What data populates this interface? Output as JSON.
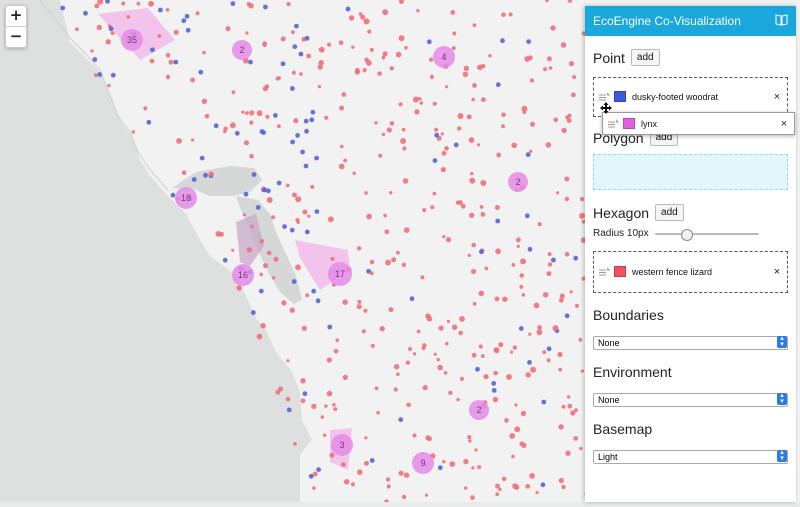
{
  "map": {
    "zoom_in": "+",
    "zoom_out": "−",
    "cluster_counts": [
      "35",
      "2",
      "4",
      "18",
      "2",
      "16",
      "17",
      "2",
      "3",
      "9"
    ],
    "colors": {
      "pink_points": "#f07079",
      "blue_points": "#5266d6",
      "cluster": "#e58be8",
      "polygon": "#f3b0ea"
    }
  },
  "panel": {
    "title": "EcoEngine Co-Visualization",
    "title_icon": "book-icon",
    "accent_color": "#1aa7dc",
    "point": {
      "title": "Point",
      "add_label": "add",
      "layers": [
        {
          "name": "dusky-footed woodrat",
          "color": "#3e59d9"
        },
        {
          "name": "lynx",
          "color": "#e35fe0"
        }
      ]
    },
    "polygon": {
      "title": "Polygon",
      "add_label": "add"
    },
    "hexagon": {
      "title": "Hexagon",
      "add_label": "add",
      "radius_label": "Radius 10px",
      "radius_value": 10,
      "layers": [
        {
          "name": "western fence lizard",
          "color": "#f3515b"
        }
      ]
    },
    "boundaries": {
      "title": "Boundaries",
      "value": "None"
    },
    "environment": {
      "title": "Environment",
      "value": "None"
    },
    "basemap": {
      "title": "Basemap",
      "value": "Light"
    },
    "remove_symbol": "×"
  }
}
